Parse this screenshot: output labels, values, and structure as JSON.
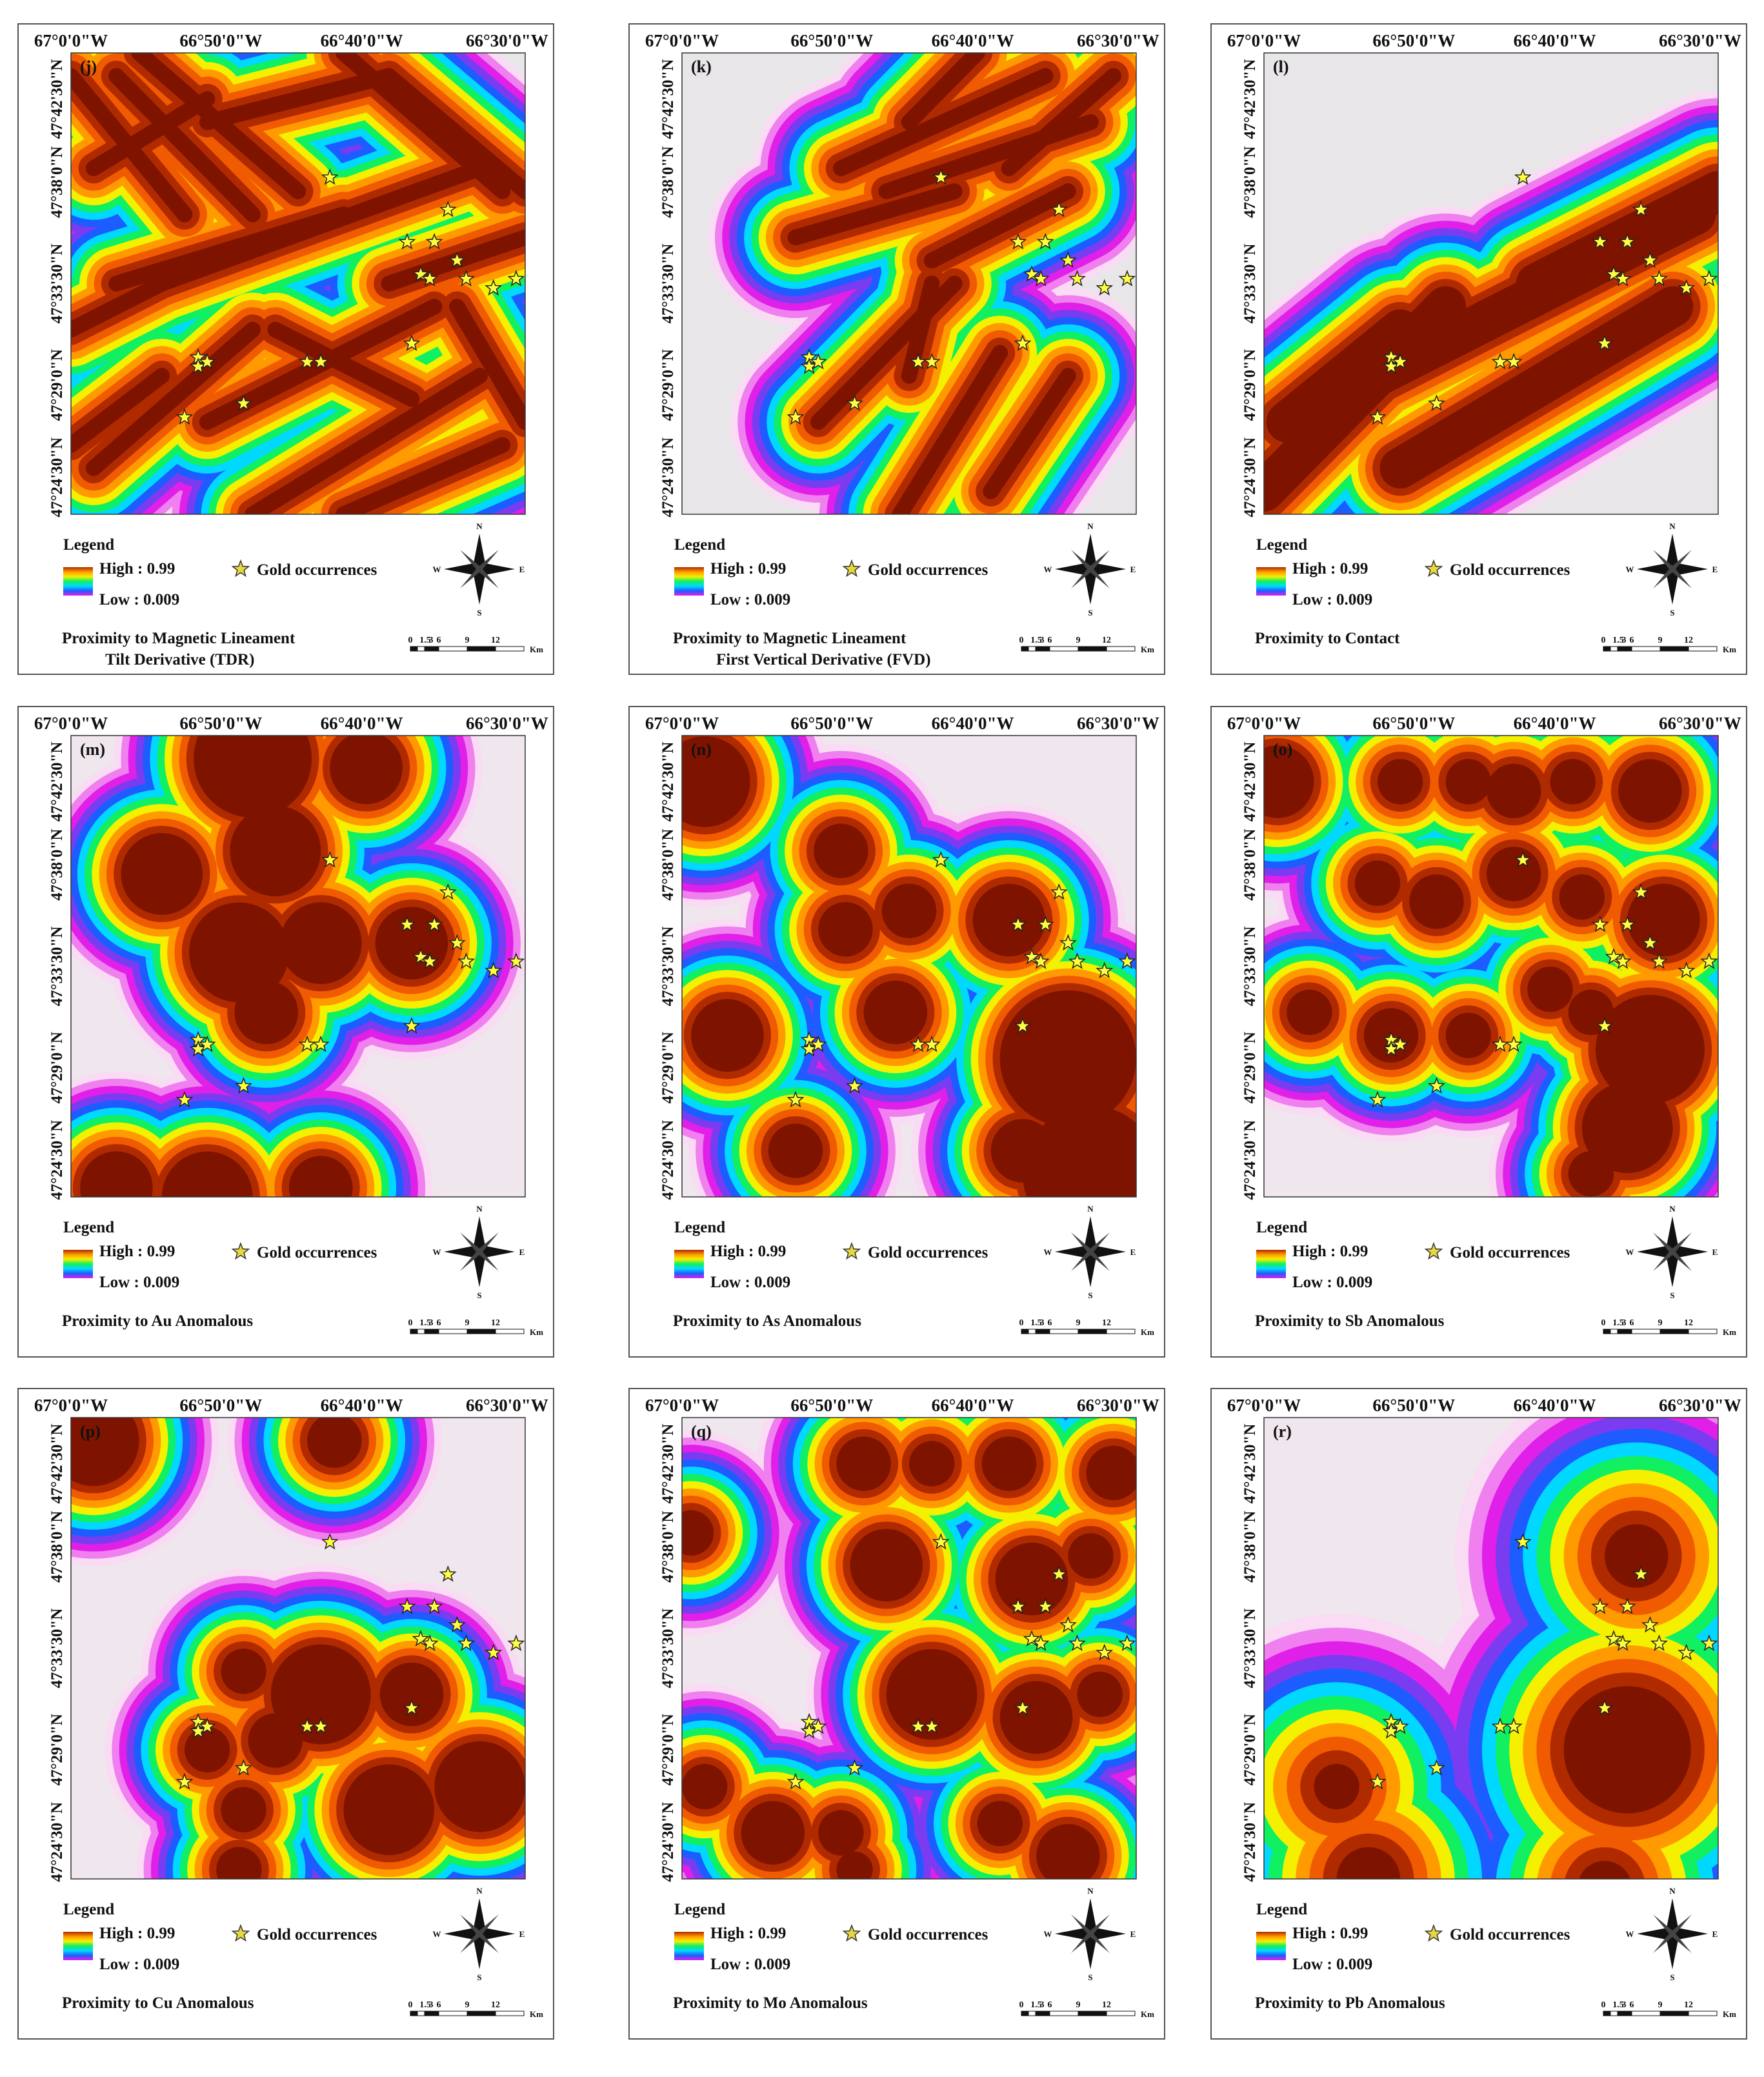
{
  "panels": [
    {
      "label": "(j)",
      "title": [
        "Proximity to Magnetic Lineament",
        "Tilt Derivative (TDR)"
      ]
    },
    {
      "label": "(k)",
      "title": [
        "Proximity to Magnetic Lineament",
        "First Vertical Derivative (FVD)"
      ]
    },
    {
      "label": "(l)",
      "title": [
        "Proximity to Contact"
      ]
    },
    {
      "label": "(m)",
      "title": [
        "Proximity to Au Anomalous"
      ]
    },
    {
      "label": "(n)",
      "title": [
        "Proximity to As  Anomalous"
      ]
    },
    {
      "label": "(o)",
      "title": [
        "Proximity to Sb Anomalous"
      ]
    },
    {
      "label": "(p)",
      "title": [
        "Proximity to Cu Anomalous"
      ]
    },
    {
      "label": "(q)",
      "title": [
        "Proximity to Mo Anomalous"
      ]
    },
    {
      "label": "(r)",
      "title": [
        "Proximity to Pb Anomalous"
      ]
    }
  ],
  "longitude_labels": [
    "67°0'0\"W",
    "66°50'0\"W",
    "66°40'0\"W",
    "66°30'0\"W"
  ],
  "latitude_labels": [
    "47°42'30\"N",
    "47°38'0\"N",
    "47°33'30\"N",
    "47°29'0\"N",
    "47°24'30\"N"
  ],
  "legend": {
    "heading": "Legend",
    "high": "High : 0.99",
    "low": "Low : 0.009",
    "symbol": "Gold occurrences"
  },
  "compass": {
    "north": "N",
    "east": "E",
    "south": "S",
    "west": "W"
  },
  "scale_bar": {
    "ticks": [
      "0",
      "1.5",
      "3",
      "6",
      "9",
      "12"
    ],
    "unit": "Km"
  }
}
